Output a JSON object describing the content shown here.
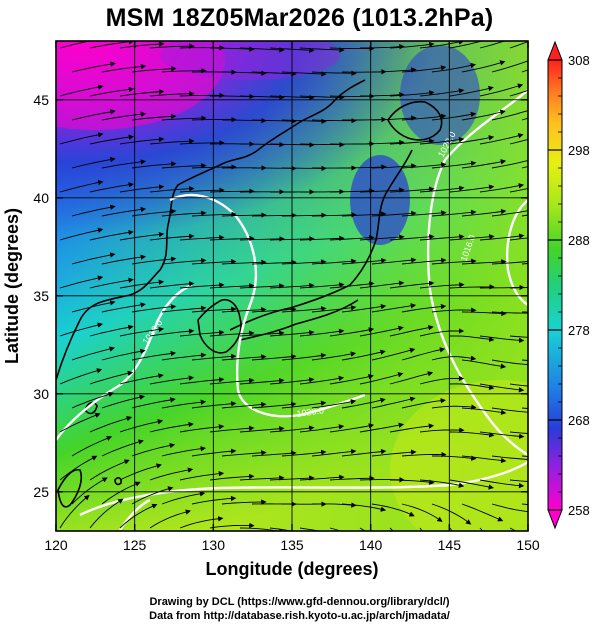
{
  "title": "MSM 18Z05Mar2026 (1013.2hPa)",
  "map": {
    "xlabel": "Longitude (degrees)",
    "ylabel": "Latitude  (degrees)",
    "lon_range": [
      120,
      150
    ],
    "lat_range": [
      23,
      48
    ],
    "lon_ticks": [
      "120",
      "125",
      "130",
      "135",
      "140",
      "145",
      "150"
    ],
    "lat_ticks": [
      "25",
      "30",
      "35",
      "40",
      "45"
    ],
    "grid": true,
    "field": "potential temperature shading with streamlines",
    "colorbar": {
      "min": 258,
      "max": 308,
      "tick_labels": [
        "258",
        "268",
        "278",
        "288",
        "298",
        "308"
      ],
      "colors": [
        "#ff00cc",
        "#9a1ee0",
        "#2a3bd8",
        "#1f7fe6",
        "#19d2d2",
        "#22d07a",
        "#44d42a",
        "#a8e81a",
        "#e8ef14",
        "#ffc020",
        "#ff7a20",
        "#ff2020"
      ]
    },
    "contour_labels": [
      "1020.0",
      "1020.0",
      "1016.0",
      "1016.0"
    ]
  },
  "credits": {
    "line1": "Drawing by DCL (https://www.gfd-dennou.org/library/dcl/)",
    "line2": "Data from http://database.rish.kyoto-u.ac.jp/arch/jmadata/"
  }
}
